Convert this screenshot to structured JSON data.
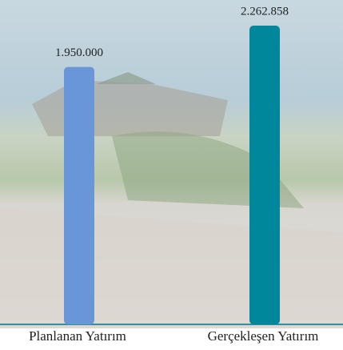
{
  "chart_data": {
    "type": "bar",
    "categories": [
      "Planlanan Yatırım",
      "Gerçekleşen Yatırım"
    ],
    "values": [
      1950000,
      2262858
    ],
    "value_labels": [
      "1.950.000",
      "2.262.858"
    ],
    "colors": [
      "#6896d6",
      "#00879c"
    ]
  }
}
